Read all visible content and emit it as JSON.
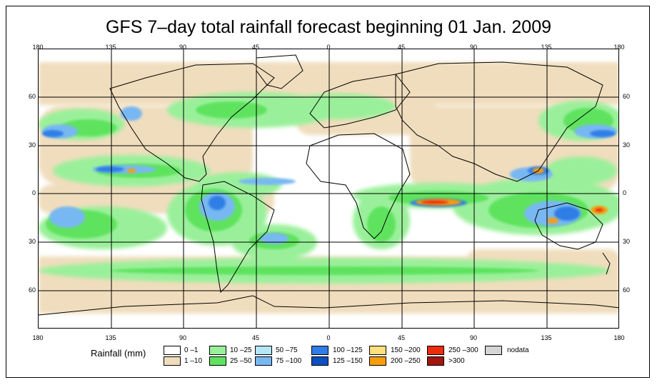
{
  "title": "GFS 7–day total rainfall forecast beginning 01 Jan. 2009",
  "longitude_ticks": [
    "180",
    "135",
    "90",
    "45",
    "0",
    "45",
    "90",
    "135",
    "180"
  ],
  "latitude_ticks": [
    "60",
    "30",
    "0",
    "30",
    "60"
  ],
  "legend": {
    "title": "Rainfall (mm)",
    "items": [
      {
        "label": "0 –1",
        "color": "#ffffff"
      },
      {
        "label": "1 –10",
        "color": "#f0ddbd"
      },
      {
        "label": "10 –25",
        "color": "#9af09a"
      },
      {
        "label": "25 –50",
        "color": "#5ee35e"
      },
      {
        "label": "50 –75",
        "color": "#b4e6f7"
      },
      {
        "label": "75 –100",
        "color": "#78b8f2"
      },
      {
        "label": "100 –125",
        "color": "#2f7ee6"
      },
      {
        "label": "125 –150",
        "color": "#0b4fc2"
      },
      {
        "label": "150 –200",
        "color": "#ffe07a"
      },
      {
        "label": "200 –250",
        "color": "#f79e0a"
      },
      {
        "label": "250 –300",
        "color": "#ec2c0c"
      },
      {
        "label": ">300",
        "color": "#a3150f"
      },
      {
        "label": "nodata",
        "color": "#d4d4d4"
      }
    ]
  }
}
